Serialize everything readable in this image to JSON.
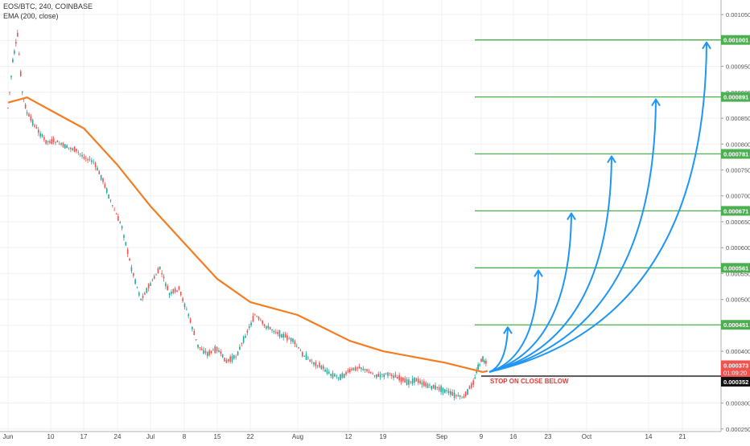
{
  "header": {
    "symbol_line": "EOS/BTC, 240, COINBASE",
    "indicator_line": "EMA (200, close)"
  },
  "chart_data": {
    "type": "line",
    "title": "EOS/BTC, 240, COINBASE",
    "x_ticks": [
      "Jun",
      "10",
      "17",
      "24",
      "Jul",
      "8",
      "15",
      "22",
      "Aug",
      "12",
      "19",
      "Sep",
      "9",
      "16",
      "23",
      "Oct",
      "14",
      "21"
    ],
    "y_ticks": [
      "0.001050",
      "0.001000",
      "0.000950",
      "0.000900",
      "0.000850",
      "0.000800",
      "0.000750",
      "0.000700",
      "0.000650",
      "0.000600",
      "0.000550",
      "0.000500",
      "0.000450",
      "0.000400",
      "0.000350",
      "0.000300",
      "0.000250"
    ],
    "ylim": [
      0.000245,
      0.001075
    ],
    "price_points": [
      [
        "Jun 1",
        0.00087
      ],
      [
        "Jun 2",
        0.00096
      ],
      [
        "Jun 3",
        0.00101
      ],
      [
        "Jun 4",
        0.0009
      ],
      [
        "Jun 5",
        0.00086
      ],
      [
        "Jun 7",
        0.00083
      ],
      [
        "Jun 9",
        0.000805
      ],
      [
        "Jun 11",
        0.000805
      ],
      [
        "Jun 13",
        0.000795
      ],
      [
        "Jun 15",
        0.00079
      ],
      [
        "Jun 17",
        0.000775
      ],
      [
        "Jun 19",
        0.000765
      ],
      [
        "Jun 21",
        0.00073
      ],
      [
        "Jun 23",
        0.00068
      ],
      [
        "Jun 25",
        0.00064
      ],
      [
        "Jun 27",
        0.00056
      ],
      [
        "Jun 29",
        0.0005
      ],
      [
        "Jul 1",
        0.00053
      ],
      [
        "Jul 3",
        0.00056
      ],
      [
        "Jul 5",
        0.00051
      ],
      [
        "Jul 7",
        0.00052
      ],
      [
        "Jul 9",
        0.00047
      ],
      [
        "Jul 11",
        0.00041
      ],
      [
        "Jul 13",
        0.000395
      ],
      [
        "Jul 15",
        0.000405
      ],
      [
        "Jul 17",
        0.00038
      ],
      [
        "Jul 19",
        0.00039
      ],
      [
        "Jul 21",
        0.00043
      ],
      [
        "Jul 23",
        0.00047
      ],
      [
        "Jul 25",
        0.00045
      ],
      [
        "Jul 27",
        0.00044
      ],
      [
        "Jul 29",
        0.00043
      ],
      [
        "Jul 31",
        0.00042
      ],
      [
        "Aug 2",
        0.000395
      ],
      [
        "Aug 4",
        0.00038
      ],
      [
        "Aug 6",
        0.00037
      ],
      [
        "Aug 8",
        0.000355
      ],
      [
        "Aug 10",
        0.00035
      ],
      [
        "Aug 12",
        0.000362
      ],
      [
        "Aug 14",
        0.00037
      ],
      [
        "Aug 16",
        0.00036
      ],
      [
        "Aug 18",
        0.000352
      ],
      [
        "Aug 20",
        0.000357
      ],
      [
        "Aug 22",
        0.00035
      ],
      [
        "Aug 24",
        0.00034
      ],
      [
        "Aug 26",
        0.000345
      ],
      [
        "Aug 28",
        0.000335
      ],
      [
        "Aug 30",
        0.00033
      ],
      [
        "Sep 1",
        0.000325
      ],
      [
        "Sep 3",
        0.000315
      ],
      [
        "Sep 5",
        0.00031
      ],
      [
        "Sep 7",
        0.00034
      ],
      [
        "Sep 8",
        0.00037
      ],
      [
        "Sep 9",
        0.000385
      ],
      [
        "Sep 10",
        0.000373
      ]
    ],
    "series": [
      {
        "name": "EMA (200, close)",
        "color": "#f57c20",
        "points": [
          [
            "Jun 1",
            0.00088
          ],
          [
            "Jun 5",
            0.00089
          ],
          [
            "Jun 10",
            0.000865
          ],
          [
            "Jun 17",
            0.00083
          ],
          [
            "Jun 24",
            0.00076
          ],
          [
            "Jul 1",
            0.00068
          ],
          [
            "Jul 8",
            0.00061
          ],
          [
            "Jul 15",
            0.00054
          ],
          [
            "Jul 22",
            0.000495
          ],
          [
            "Aug 1",
            0.00047
          ],
          [
            "Aug 12",
            0.00042
          ],
          [
            "Aug 19",
            0.0004
          ],
          [
            "Sep 1",
            0.000378
          ],
          [
            "Sep 9",
            0.00036
          ],
          [
            "Sep 10",
            0.000362
          ]
        ]
      }
    ],
    "target_levels": [
      {
        "value": 0.001001,
        "label": "0.001001"
      },
      {
        "value": 0.000891,
        "label": "0.000891"
      },
      {
        "value": 0.000781,
        "label": "0.000781"
      },
      {
        "value": 0.000671,
        "label": "0.000671"
      },
      {
        "value": 0.000561,
        "label": "0.000561"
      },
      {
        "value": 0.000451,
        "label": "0.000451"
      }
    ],
    "current_price": {
      "value": 0.000373,
      "label": "0.000373",
      "countdown": "01:09:20"
    },
    "stop_level": {
      "value": 0.000352,
      "label": "0.000352",
      "annotation": "STOP ON CLOSE BELOW"
    },
    "colors": {
      "up_candle": "#26a69a",
      "down_candle": "#ef5350",
      "ema": "#f57c20",
      "target_line": "#4caf50",
      "arrow": "#2196f3",
      "stop_line": "#000000",
      "price_badge": "#ef5350"
    }
  }
}
